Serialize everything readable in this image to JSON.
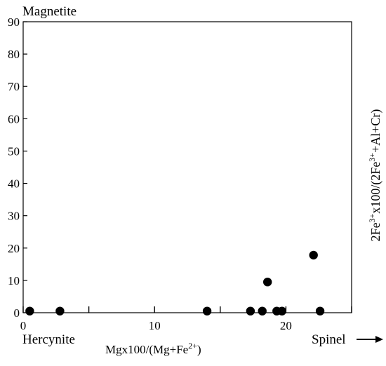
{
  "chart_data": {
    "type": "scatter",
    "title": "",
    "corner_labels": {
      "top_left": "Magnetite",
      "bottom_left": "Hercynite",
      "bottom_right": "Spinel",
      "bottom_right_arrow": "→"
    },
    "xlabel": {
      "base": "Mgx100/(Mg+Fe",
      "sup": "2+",
      "tail": ")"
    },
    "ylabel": {
      "parts": [
        {
          "t": "2Fe",
          "sup": false
        },
        {
          "t": "3+",
          "sup": true
        },
        {
          "t": "x100/(2Fe",
          "sup": false
        },
        {
          "t": "3+",
          "sup": true
        },
        {
          "t": "+Al+Cr)",
          "sup": false
        }
      ]
    },
    "xlim": [
      0,
      25
    ],
    "ylim": [
      0,
      90
    ],
    "x_ticks": [
      0,
      5,
      10,
      15,
      20,
      25
    ],
    "x_tick_labels": [
      {
        "value": 0,
        "label": "0"
      },
      {
        "value": 10,
        "label": "10"
      },
      {
        "value": 20,
        "label": "20"
      }
    ],
    "y_ticks": [
      0,
      10,
      20,
      30,
      40,
      50,
      60,
      70,
      80,
      90
    ],
    "y_tick_labels": [
      "0",
      "10",
      "20",
      "30",
      "40",
      "50",
      "60",
      "70",
      "80",
      "90"
    ],
    "grid": false,
    "series": [
      {
        "marker_color": "#000000",
        "points": [
          {
            "x": 0.5,
            "y": 0.5
          },
          {
            "x": 2.8,
            "y": 0.5
          },
          {
            "x": 14.0,
            "y": 0.5
          },
          {
            "x": 17.3,
            "y": 0.5
          },
          {
            "x": 18.2,
            "y": 0.5
          },
          {
            "x": 18.6,
            "y": 9.5
          },
          {
            "x": 19.3,
            "y": 0.5
          },
          {
            "x": 19.7,
            "y": 0.5
          },
          {
            "x": 22.1,
            "y": 17.8
          },
          {
            "x": 22.6,
            "y": 0.5
          }
        ]
      }
    ]
  }
}
